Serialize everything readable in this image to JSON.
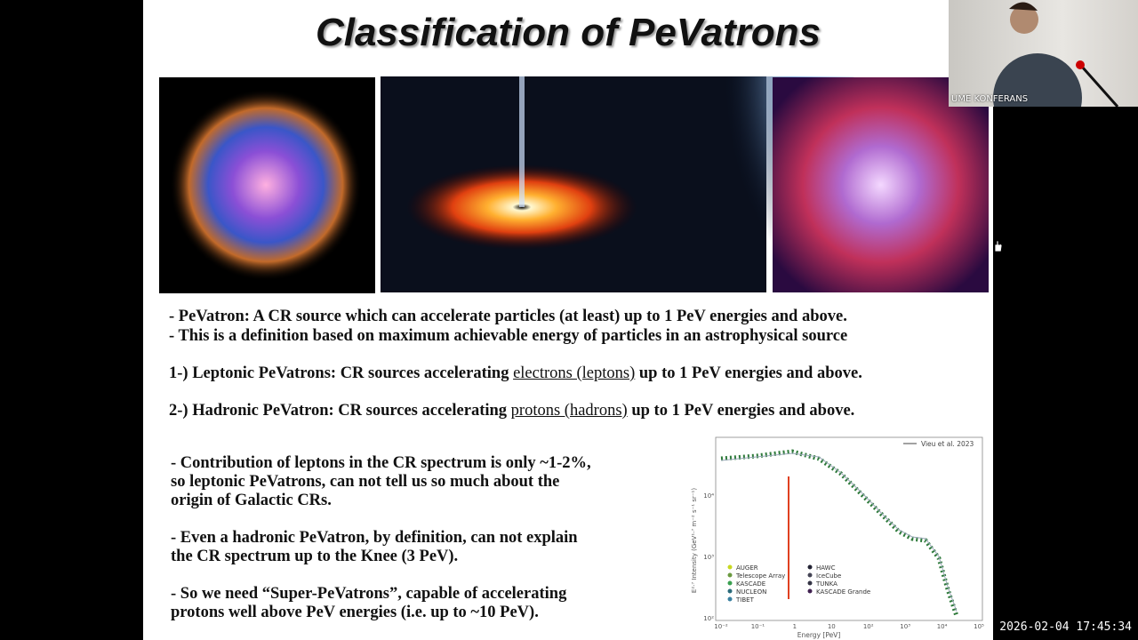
{
  "slide": {
    "title": "Classification of PeVatrons",
    "definitions": [
      "- PeVatron: A CR source which can accelerate particles (at least) up to 1 PeV energies and above.",
      "- This is a definition based on maximum achievable energy of particles in an astrophysical source"
    ],
    "classes": [
      {
        "prefix": "1-) Leptonic PeVatrons: CR sources accelerating",
        "emphasis": "electrons (leptons)",
        "suffix": "up to 1 PeV energies and above."
      },
      {
        "prefix": "2-) Hadronic PeVatron: CR sources accelerating",
        "emphasis": "protons (hadrons)",
        "suffix": "up to 1 PeV energies and above."
      }
    ],
    "notes": [
      [
        "- Contribution of leptons in the CR spectrum is only ~1-2%,",
        "so leptonic PeVatrons, can not tell us so much about the",
        "origin of Galactic CRs."
      ],
      [
        "- Even a hadronic PeVatron, by definition, can not explain",
        "the CR spectrum up to the Knee (3 PeV)."
      ],
      [
        "- So we need “Super-PeVatrons”, capable of accelerating",
        "protons well above PeV energies (i.e. up to ~10 PeV)."
      ]
    ],
    "figure": {
      "legend_line": "Vieu et al. 2023",
      "ylabel": "E²·⁷ Intensity (GeV¹·⁷ m⁻² s⁻¹ sr⁻¹)",
      "xlabel": "Energy [PeV]",
      "xticks": [
        "10⁻²",
        "10⁻¹",
        "1",
        "10",
        "10²",
        "10³",
        "10⁴",
        "10⁵"
      ],
      "yticks": [
        "10⁴",
        "10³",
        "10²"
      ],
      "experiments": [
        "AUGER",
        "Telescope Array",
        "KASCADE",
        "NUCLEON",
        "TIBET",
        "HAWC",
        "IceCube",
        "TUNKA",
        "KASCADE Grande"
      ]
    }
  },
  "video": {
    "caption": "UME KONFERANS",
    "timestamp": "2026-02-04 17:45:34"
  }
}
